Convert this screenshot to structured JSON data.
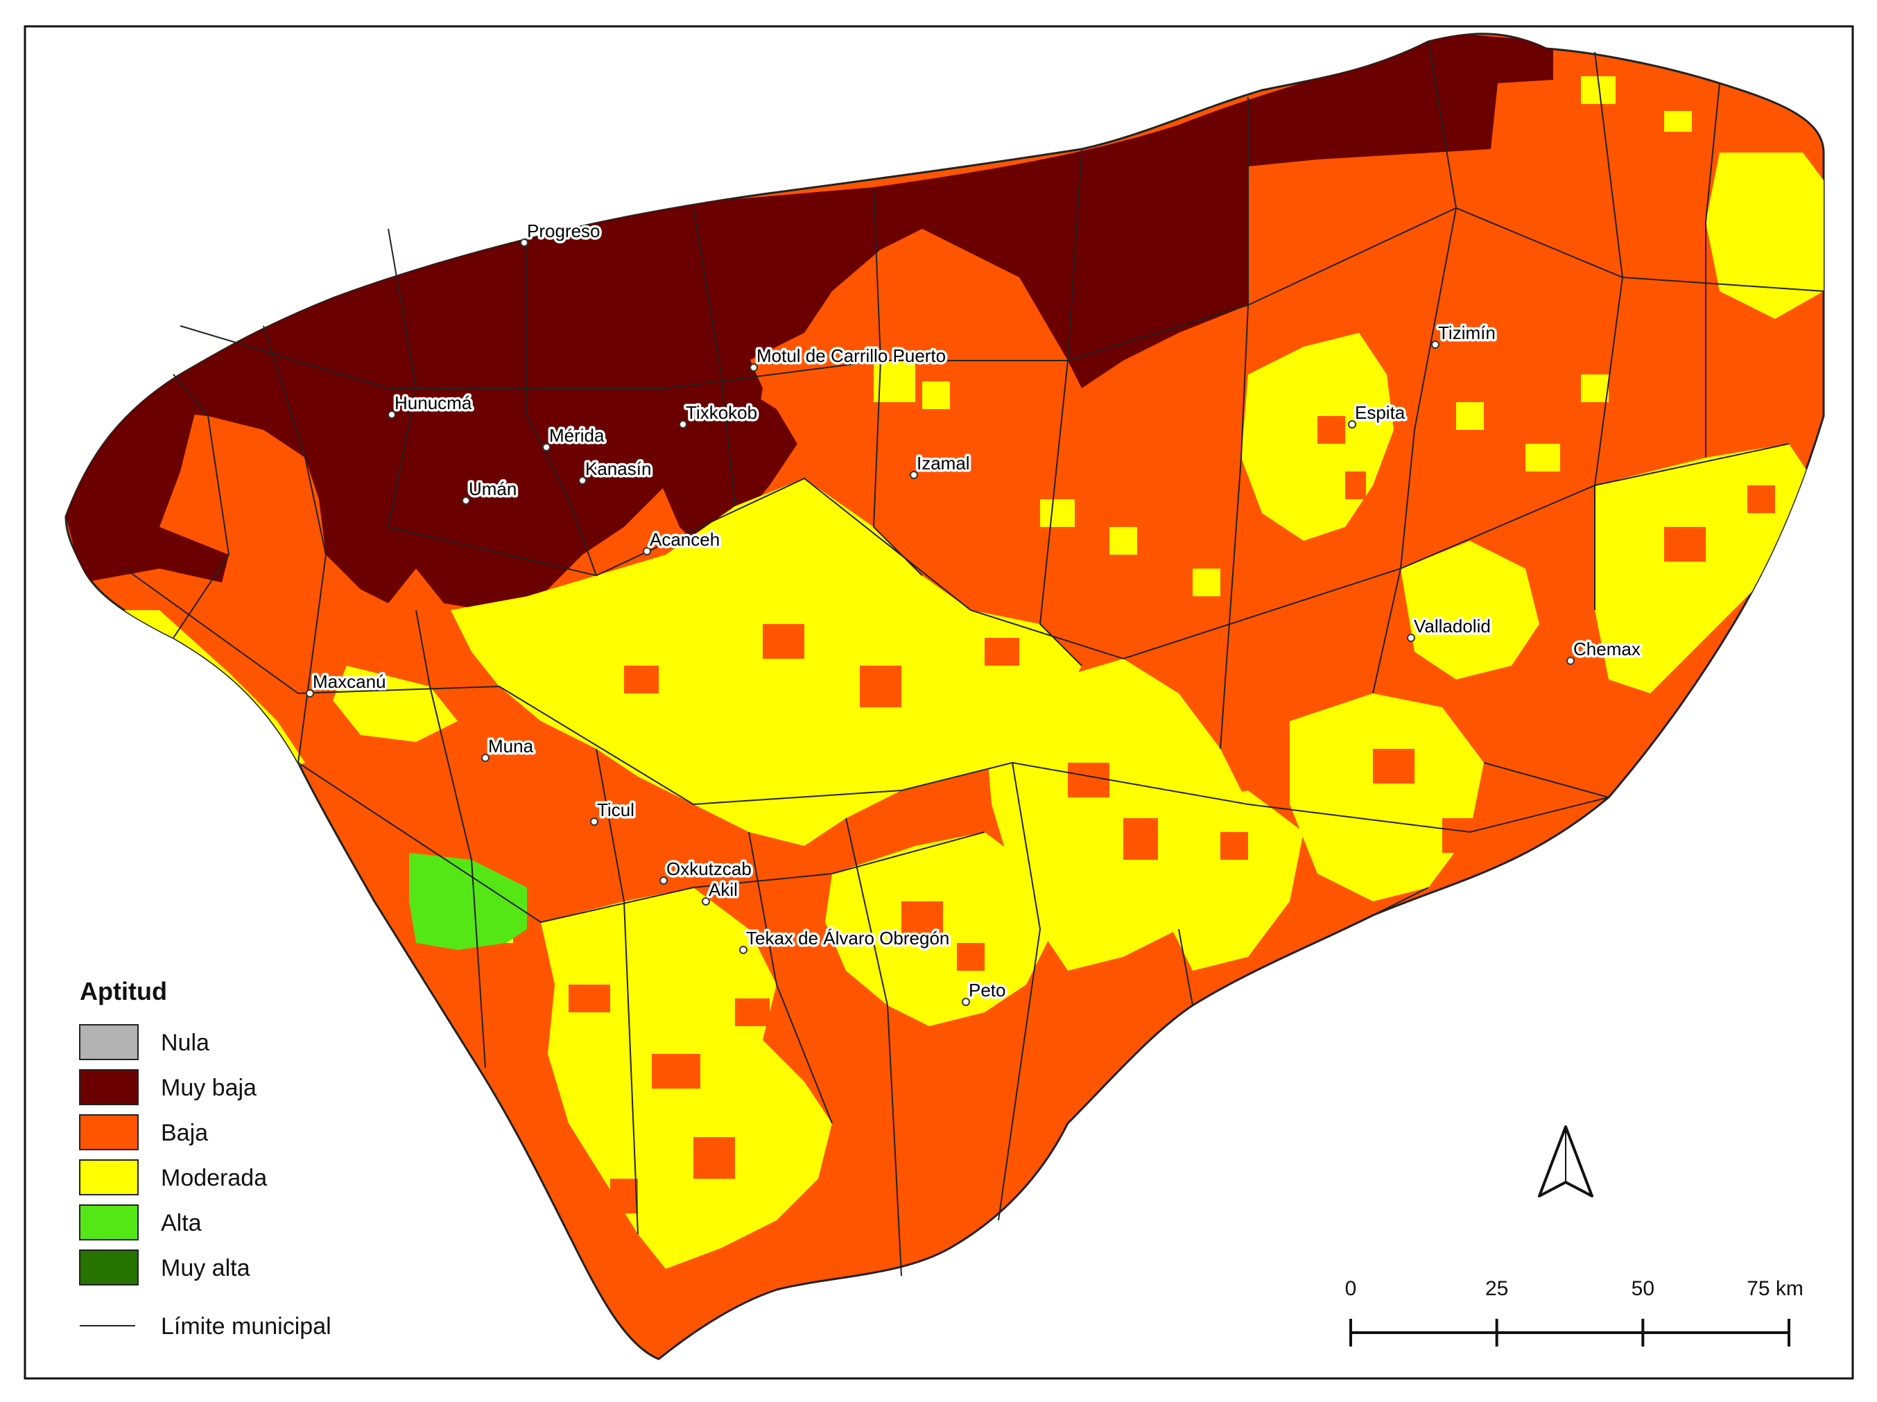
{
  "colors": {
    "nula": "#b3b3b3",
    "muy_baja": "#6b0000",
    "baja": "#ff5500",
    "moderada": "#ffff00",
    "alta": "#55e615",
    "muy_alta": "#267300",
    "boundary": "#222222"
  },
  "legend": {
    "title": "Aptitud",
    "items": [
      {
        "label": "Nula",
        "color": "#b3b3b3"
      },
      {
        "label": "Muy baja",
        "color": "#6b0000"
      },
      {
        "label": "Baja",
        "color": "#ff5500"
      },
      {
        "label": "Moderada",
        "color": "#ffff00"
      },
      {
        "label": "Alta",
        "color": "#55e615"
      },
      {
        "label": "Muy alta",
        "color": "#267300"
      }
    ],
    "boundary_label": "Límite municipal"
  },
  "scale_bar": {
    "ticks": [
      "0",
      "25",
      "50",
      "75 km"
    ]
  },
  "north_arrow": {
    "icon": "north-arrow-icon"
  },
  "cities": [
    {
      "name": "Progreso"
    },
    {
      "name": "Tizimín"
    },
    {
      "name": "Motul de Carrillo Puerto"
    },
    {
      "name": "Hunucmá"
    },
    {
      "name": "Mérida"
    },
    {
      "name": "Tixkokob"
    },
    {
      "name": "Espita"
    },
    {
      "name": "Kanasín"
    },
    {
      "name": "Izamal"
    },
    {
      "name": "Umán"
    },
    {
      "name": "Acanceh"
    },
    {
      "name": "Valladolid"
    },
    {
      "name": "Chemax"
    },
    {
      "name": "Maxcanú"
    },
    {
      "name": "Muna"
    },
    {
      "name": "Ticul"
    },
    {
      "name": "Oxkutzcab"
    },
    {
      "name": "Akil"
    },
    {
      "name": "Tekax de Álvaro Obregón"
    },
    {
      "name": "Peto"
    }
  ]
}
